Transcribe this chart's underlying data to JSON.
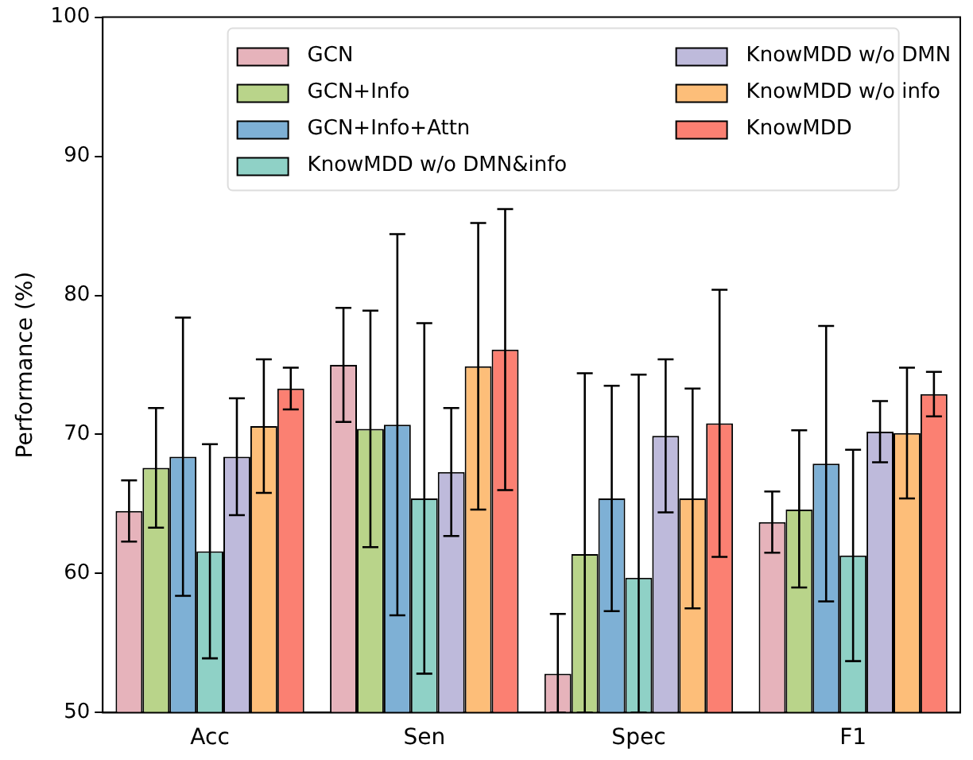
{
  "chart_data": {
    "type": "bar",
    "ylabel": "Performance (%)",
    "categories": [
      "Acc",
      "Sen",
      "Spec",
      "F1"
    ],
    "ylim": [
      50,
      100
    ],
    "yticks": [
      50,
      60,
      70,
      80,
      90,
      100
    ],
    "grid": false,
    "legend": "top",
    "series": [
      {
        "name": "GCN",
        "color": "#e6b3bb",
        "values": [
          64.5,
          75.0,
          52.8,
          63.7
        ],
        "errors": [
          2.2,
          4.1,
          [
            50,
            57.1
          ],
          2.2
        ]
      },
      {
        "name": "GCN+Info",
        "color": "#b9d48a",
        "values": [
          67.6,
          70.4,
          61.4,
          64.6
        ],
        "errors": [
          4.3,
          8.5,
          [
            50,
            74.4
          ],
          [
            59.0,
            70.3
          ]
        ]
      },
      {
        "name": "GCN+Info+Attn",
        "color": "#7eb0d5",
        "values": [
          68.4,
          70.7,
          65.4,
          67.9
        ],
        "errors": [
          10.0,
          13.7,
          8.1,
          9.9
        ]
      },
      {
        "name": "KnowMDD w/o DMN&info",
        "color": "#8fd1c6",
        "values": [
          61.6,
          65.4,
          59.7,
          61.3
        ],
        "errors": [
          7.7,
          12.6,
          [
            50,
            74.3
          ],
          7.6
        ]
      },
      {
        "name": "KnowMDD w/o DMN",
        "color": "#bebadb",
        "values": [
          68.4,
          67.3,
          69.9,
          70.2
        ],
        "errors": [
          4.2,
          4.6,
          5.5,
          2.2
        ]
      },
      {
        "name": "KnowMDD w/o info",
        "color": "#fdbe79",
        "values": [
          70.6,
          74.9,
          65.4,
          70.1
        ],
        "errors": [
          4.8,
          10.3,
          7.9,
          4.7
        ]
      },
      {
        "name": "KnowMDD",
        "color": "#fb8072",
        "values": [
          73.3,
          76.1,
          70.8,
          72.9
        ],
        "errors": [
          1.5,
          10.1,
          9.6,
          1.6
        ]
      }
    ]
  }
}
